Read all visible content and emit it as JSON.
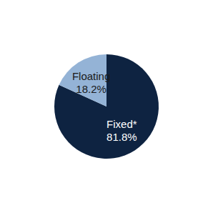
{
  "chart_data": {
    "type": "pie",
    "categories": [
      "Fixed*",
      "Floating"
    ],
    "values": [
      81.8,
      18.2
    ],
    "value_labels": [
      "81.8%",
      "18.2%"
    ],
    "colors": [
      "#0e2341",
      "#94b3d6"
    ],
    "data_labels": true
  }
}
